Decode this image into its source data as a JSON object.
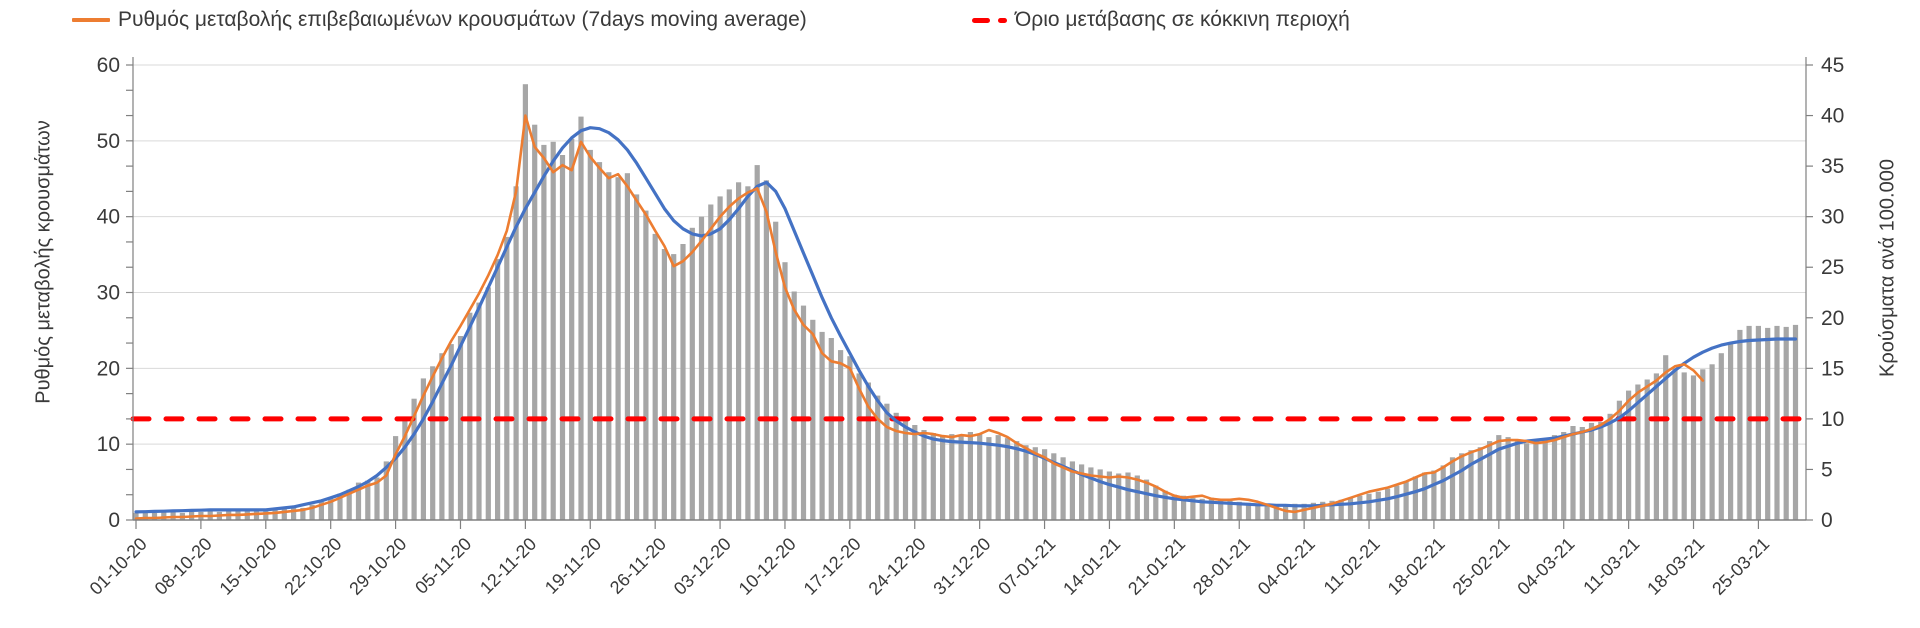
{
  "legend": {
    "series_label": "Ρυθμός μεταβολής επιβεβαιωμένων κρουσμάτων (7days moving average)",
    "threshold_label": "Όριο μετάβασης σε κόκκινη περιοχή"
  },
  "axes": {
    "left_title": "Ρυθμός μεταβολής κρουσμάτων",
    "right_title": "Κρούσματα ανά 100.000",
    "left_ticks": [
      0,
      10,
      20,
      30,
      40,
      50,
      60
    ],
    "right_ticks": [
      0,
      5,
      10,
      15,
      20,
      25,
      30,
      35,
      40,
      45
    ],
    "left_max": 60,
    "right_max": 45
  },
  "chart_data": {
    "type": "bar",
    "subtype": "combo bar + line, dual y-axis",
    "title": "",
    "xlabel": "",
    "ylabel_left": "Ρυθμός μεταβολής κρουσμάτων",
    "ylabel_right": "Κρούσματα ανά 100.000",
    "ylim_left": [
      0,
      60
    ],
    "ylim_right": [
      0,
      45
    ],
    "grid": "horizontal",
    "legend_position": "top",
    "days": 180,
    "x_start": "01-10-20",
    "x_end": "29-03-21",
    "week_tick_labels": [
      "01-10-20",
      "08-10-20",
      "15-10-20",
      "22-10-20",
      "29-10-20",
      "05-11-20",
      "12-11-20",
      "19-11-20",
      "26-11-20",
      "03-12-20",
      "10-12-20",
      "17-12-20",
      "24-12-20",
      "31-12-20",
      "07-01-21",
      "14-01-21",
      "21-01-21",
      "28-01-21",
      "04-02-21",
      "11-02-21",
      "18-02-21",
      "25-02-21",
      "04-03-21",
      "11-03-21",
      "18-03-21",
      "25-03-21"
    ],
    "threshold": {
      "label": "Όριο μετάβασης σε κόκκινη περιοχή",
      "value_right_axis": 10,
      "color": "#fe0000",
      "style": "dashed"
    },
    "series": [
      {
        "name": "daily-cases-bars",
        "axis": "right",
        "color": "#a6a6a6",
        "values": [
          0.7,
          0.8,
          0.7,
          0.8,
          0.8,
          0.7,
          0.8,
          0.8,
          0.9,
          0.8,
          0.9,
          1.0,
          0.9,
          1.0,
          1.0,
          1.1,
          1.2,
          1.3,
          1.2,
          1.5,
          1.8,
          2.2,
          2.6,
          3.0,
          3.7,
          3.9,
          4.2,
          5.8,
          8.3,
          10.2,
          12.0,
          14.0,
          15.2,
          16.5,
          17.4,
          18.2,
          20.5,
          21.5,
          23.0,
          25.8,
          28.0,
          33.0,
          43.1,
          39.1,
          37.1,
          37.4,
          36.1,
          37.7,
          39.9,
          36.6,
          35.4,
          34.4,
          33.9,
          34.3,
          32.2,
          30.6,
          28.3,
          26.8,
          26.3,
          27.3,
          28.9,
          30.0,
          31.2,
          32.0,
          32.7,
          33.4,
          33.0,
          35.1,
          33.6,
          29.5,
          25.5,
          22.6,
          21.2,
          19.8,
          18.6,
          18.0,
          16.8,
          16.2,
          14.5,
          13.6,
          12.3,
          11.5,
          10.6,
          9.8,
          9.4,
          8.9,
          8.6,
          8.3,
          8.5,
          8.4,
          8.7,
          8.5,
          8.2,
          8.4,
          8.1,
          7.8,
          7.4,
          7.2,
          7.0,
          6.6,
          6.2,
          5.8,
          5.5,
          5.2,
          5.0,
          4.8,
          4.6,
          4.7,
          4.4,
          4.0,
          3.4,
          2.9,
          2.5,
          2.4,
          2.2,
          2.1,
          2.2,
          2.0,
          1.9,
          1.8,
          1.7,
          1.6,
          1.5,
          1.4,
          1.5,
          1.6,
          1.6,
          1.7,
          1.8,
          1.9,
          2.0,
          2.2,
          2.4,
          2.6,
          2.8,
          3.1,
          3.4,
          3.8,
          4.3,
          4.7,
          4.9,
          5.4,
          6.2,
          6.6,
          6.9,
          7.2,
          7.8,
          8.4,
          8.2,
          7.9,
          7.6,
          7.8,
          8.1,
          8.4,
          8.7,
          9.3,
          9.2,
          9.6,
          9.7,
          10.5,
          11.8,
          12.8,
          13.4,
          13.9,
          14.5,
          16.3,
          15.0,
          14.6,
          14.3,
          14.9,
          15.4,
          16.5,
          17.4,
          18.8,
          19.2,
          19.2,
          19.0,
          19.2,
          19.1,
          19.3
        ]
      },
      {
        "name": "Ρυθμός μεταβολής επιβεβαιωμένων κρουσμάτων (7days moving average)",
        "axis": "right",
        "color": "#ed7d31",
        "values": [
          0.15,
          0.2,
          0.2,
          0.25,
          0.3,
          0.3,
          0.35,
          0.4,
          0.4,
          0.45,
          0.5,
          0.5,
          0.55,
          0.6,
          0.65,
          0.7,
          0.8,
          0.9,
          1.0,
          1.2,
          1.5,
          1.8,
          2.2,
          2.6,
          3.0,
          3.4,
          3.7,
          4.4,
          6.5,
          8.3,
          10.3,
          12.3,
          14.2,
          16.0,
          17.7,
          19.2,
          20.8,
          22.4,
          24.2,
          26.2,
          28.6,
          32.5,
          40.0,
          36.9,
          35.8,
          34.4,
          35.1,
          34.6,
          37.4,
          35.9,
          34.8,
          33.8,
          34.2,
          33.0,
          31.6,
          30.2,
          28.6,
          27.1,
          25.1,
          25.6,
          26.5,
          27.6,
          28.8,
          30.0,
          31.0,
          31.8,
          32.4,
          32.8,
          30.5,
          26.5,
          23.0,
          20.8,
          19.3,
          18.4,
          16.5,
          15.7,
          15.5,
          15.0,
          13.0,
          11.2,
          10.0,
          9.2,
          8.8,
          8.6,
          8.5,
          8.6,
          8.5,
          8.3,
          8.2,
          8.4,
          8.3,
          8.5,
          8.9,
          8.6,
          8.2,
          7.6,
          7.1,
          6.6,
          6.2,
          5.6,
          5.2,
          4.8,
          4.6,
          4.4,
          4.3,
          4.2,
          4.3,
          4.2,
          4.0,
          3.7,
          3.3,
          2.8,
          2.4,
          2.2,
          2.3,
          2.4,
          2.1,
          2.0,
          2.0,
          2.1,
          2.0,
          1.8,
          1.5,
          1.2,
          0.9,
          0.8,
          1.0,
          1.2,
          1.4,
          1.6,
          1.9,
          2.2,
          2.5,
          2.8,
          3.0,
          3.2,
          3.5,
          3.8,
          4.2,
          4.6,
          4.7,
          5.2,
          5.8,
          6.3,
          6.7,
          7.0,
          7.4,
          7.8,
          7.9,
          7.9,
          7.8,
          7.6,
          7.7,
          7.9,
          8.2,
          8.5,
          8.7,
          9.0,
          9.4,
          10.0,
          10.8,
          11.8,
          12.6,
          13.2,
          13.8,
          14.6,
          15.2,
          15.4,
          14.8,
          13.8,
          null,
          null,
          null,
          null,
          null,
          null,
          null,
          null,
          null,
          null
        ]
      },
      {
        "name": "trend-line",
        "axis": "right",
        "color": "#4472c4",
        "values": [
          0.8,
          0.82,
          0.85,
          0.87,
          0.9,
          0.92,
          0.95,
          0.97,
          1.0,
          1.0,
          1.0,
          1.0,
          1.0,
          1.0,
          1.0,
          1.1,
          1.2,
          1.3,
          1.5,
          1.7,
          1.9,
          2.2,
          2.5,
          2.9,
          3.3,
          3.8,
          4.4,
          5.2,
          6.1,
          7.2,
          8.5,
          10.0,
          11.7,
          13.5,
          15.3,
          17.2,
          19.1,
          21.0,
          23.0,
          25.0,
          27.0,
          29.0,
          30.8,
          32.4,
          34.0,
          35.5,
          36.8,
          37.8,
          38.5,
          38.8,
          38.7,
          38.3,
          37.6,
          36.6,
          35.3,
          33.8,
          32.3,
          30.8,
          29.6,
          28.8,
          28.3,
          28.1,
          28.3,
          28.8,
          29.7,
          30.8,
          32.0,
          33.0,
          33.4,
          32.5,
          30.8,
          28.6,
          26.4,
          24.2,
          22.0,
          20.0,
          18.2,
          16.5,
          14.8,
          13.2,
          11.8,
          10.6,
          9.8,
          9.2,
          8.7,
          8.3,
          8.0,
          7.85,
          7.75,
          7.7,
          7.65,
          7.6,
          7.5,
          7.4,
          7.25,
          7.05,
          6.8,
          6.5,
          6.1,
          5.7,
          5.3,
          4.9,
          4.5,
          4.15,
          3.8,
          3.5,
          3.25,
          3.0,
          2.8,
          2.6,
          2.4,
          2.25,
          2.1,
          2.0,
          1.9,
          1.8,
          1.75,
          1.7,
          1.65,
          1.6,
          1.55,
          1.5,
          1.5,
          1.45,
          1.45,
          1.4,
          1.4,
          1.4,
          1.45,
          1.5,
          1.55,
          1.6,
          1.7,
          1.8,
          1.95,
          2.1,
          2.3,
          2.55,
          2.8,
          3.1,
          3.5,
          3.9,
          4.4,
          4.9,
          5.5,
          6.0,
          6.5,
          7.0,
          7.3,
          7.6,
          7.8,
          7.9,
          8.0,
          8.1,
          8.3,
          8.5,
          8.7,
          8.9,
          9.2,
          9.6,
          10.1,
          10.8,
          11.6,
          12.4,
          13.2,
          14.0,
          14.8,
          15.5,
          16.1,
          16.6,
          17.0,
          17.3,
          17.5,
          17.65,
          17.75,
          17.8,
          17.85,
          17.9,
          17.9,
          17.9
        ]
      }
    ],
    "colors": {
      "bars": "#a6a6a6",
      "moving_average_line": "#ed7d31",
      "trend_line": "#4472c4",
      "threshold_line": "#fe0000",
      "gridline": "#d9d9d9",
      "axis_line": "#808080",
      "text": "#3a3a3a"
    }
  }
}
